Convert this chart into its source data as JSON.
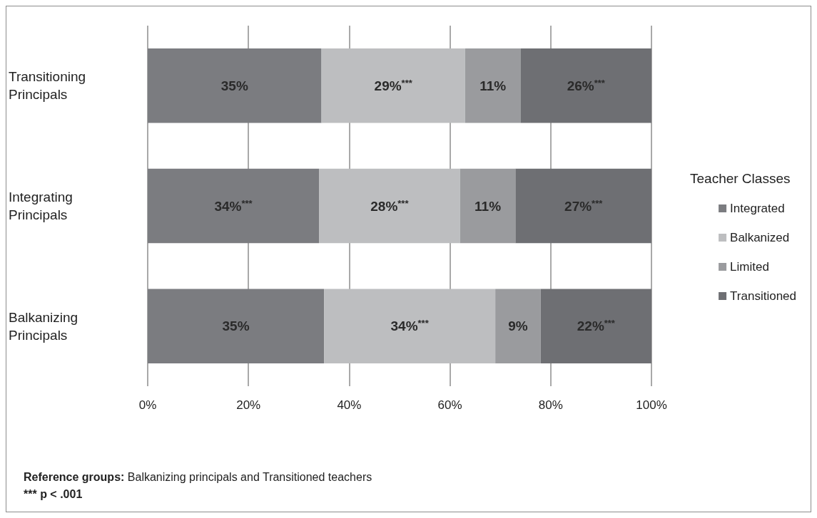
{
  "chart_data": {
    "type": "bar",
    "orientation": "horizontal",
    "stacked": true,
    "categories": [
      "Transitioning Principals",
      "Integrating Principals",
      "Balkanizing Principals"
    ],
    "series": [
      {
        "name": "Integrated",
        "color": "#7b7c80",
        "values": [
          34.5,
          34,
          35
        ],
        "value_labels": [
          "35%",
          "34%$^{***}$",
          "35%"
        ]
      },
      {
        "name": "Balkanized",
        "color": "#bdbec0",
        "values": [
          28.5,
          28,
          34
        ],
        "value_labels": [
          "29%$^{***}$",
          "28%$^{***}$",
          "34%$^{***}$"
        ]
      },
      {
        "name": "Limited",
        "color": "#9a9b9e",
        "values": [
          11,
          11,
          9
        ],
        "value_labels": [
          "11%",
          "11%",
          "9%"
        ]
      },
      {
        "name": "Transitioned",
        "color": "#6e6f73",
        "values": [
          26,
          27,
          22
        ],
        "value_labels": [
          "26%$^{***}$",
          "27%$^{***}$",
          "22%$^{***}$"
        ]
      }
    ],
    "xlim": [
      0,
      100
    ],
    "xticks": [
      {
        "value": 0,
        "label": "0%"
      },
      {
        "value": 20,
        "label": "20%"
      },
      {
        "value": 40,
        "label": "40%"
      },
      {
        "value": 60,
        "label": "60%"
      },
      {
        "value": 80,
        "label": "80%"
      },
      {
        "value": 100,
        "label": "100%"
      }
    ],
    "grid": "x",
    "legend": "right",
    "legend_title": "Teacher Classes",
    "annotations": [
      "Reference groups: Balkanizing principals and Transitioned teachers",
      "*** p < .001"
    ]
  }
}
